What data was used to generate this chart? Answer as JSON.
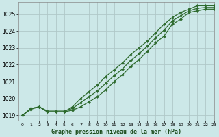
{
  "title": "Graphe pression niveau de la mer (hPa)",
  "bg_color": "#cce8e8",
  "grid_color": "#b0c8c8",
  "line_color": "#2d6a2d",
  "marker_color": "#2d6a2d",
  "xlim": [
    -0.5,
    23
  ],
  "ylim": [
    1018.7,
    1025.7
  ],
  "yticks": [
    1019,
    1020,
    1021,
    1022,
    1023,
    1024,
    1025
  ],
  "xticks": [
    0,
    1,
    2,
    3,
    4,
    5,
    6,
    7,
    8,
    9,
    10,
    11,
    12,
    13,
    14,
    15,
    16,
    17,
    18,
    19,
    20,
    21,
    22,
    23
  ],
  "series1_x": [
    0,
    1,
    2,
    3,
    4,
    5,
    6,
    7,
    8,
    9,
    10,
    11,
    12,
    13,
    14,
    15,
    16,
    17,
    18,
    19,
    20,
    21,
    22,
    23
  ],
  "series1_y": [
    1019.0,
    1019.4,
    1019.5,
    1019.2,
    1019.2,
    1019.2,
    1019.3,
    1019.5,
    1019.8,
    1020.1,
    1020.5,
    1021.0,
    1021.4,
    1021.9,
    1022.3,
    1022.8,
    1023.3,
    1023.7,
    1024.4,
    1024.7,
    1025.1,
    1025.2,
    1025.3,
    1025.3
  ],
  "series2_x": [
    0,
    1,
    2,
    3,
    4,
    5,
    6,
    7,
    8,
    9,
    10,
    11,
    12,
    13,
    14,
    15,
    16,
    17,
    18,
    19,
    20,
    21,
    22,
    23
  ],
  "series2_y": [
    1019.0,
    1019.4,
    1019.5,
    1019.2,
    1019.2,
    1019.2,
    1019.5,
    1020.0,
    1020.4,
    1020.8,
    1021.3,
    1021.7,
    1022.1,
    1022.6,
    1023.0,
    1023.4,
    1023.9,
    1024.4,
    1024.8,
    1025.1,
    1025.3,
    1025.5,
    1025.5,
    1025.5
  ],
  "series3_x": [
    0,
    1,
    2,
    3,
    4,
    5,
    6,
    7,
    8,
    9,
    10,
    11,
    12,
    13,
    14,
    15,
    16,
    17,
    18,
    19,
    20,
    21,
    22,
    23
  ],
  "series3_y": [
    1019.0,
    1019.35,
    1019.5,
    1019.25,
    1019.25,
    1019.25,
    1019.4,
    1019.75,
    1020.1,
    1020.45,
    1020.9,
    1021.35,
    1021.75,
    1022.25,
    1022.65,
    1023.1,
    1023.6,
    1024.05,
    1024.6,
    1024.9,
    1025.2,
    1025.35,
    1025.4,
    1025.4
  ]
}
